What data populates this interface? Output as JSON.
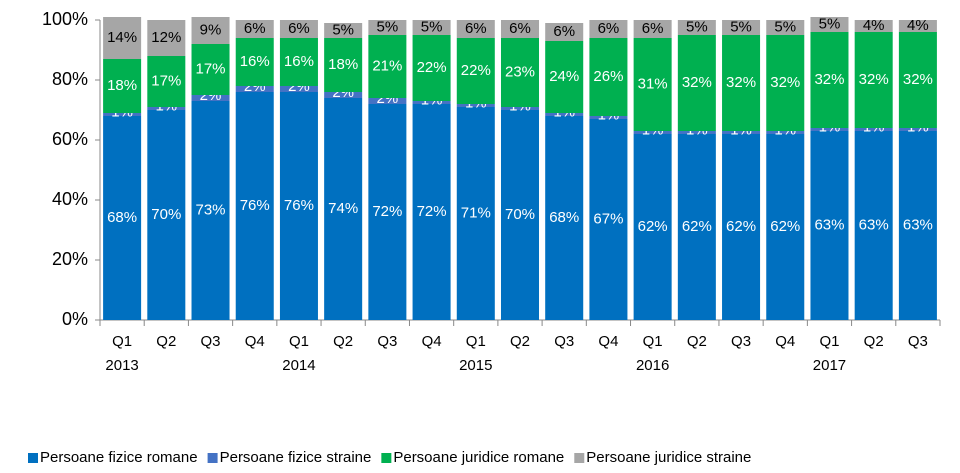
{
  "chart_data": {
    "type": "stacked_bar",
    "categories": [
      "Q1",
      "Q2",
      "Q3",
      "Q4",
      "Q1",
      "Q2",
      "Q3",
      "Q4",
      "Q1",
      "Q2",
      "Q3",
      "Q4",
      "Q1",
      "Q2",
      "Q3",
      "Q4",
      "Q1",
      "Q2",
      "Q3"
    ],
    "years": [
      "2013",
      null,
      null,
      null,
      "2014",
      null,
      null,
      null,
      "2015",
      null,
      null,
      null,
      "2016",
      null,
      null,
      null,
      "2017",
      null,
      null
    ],
    "ylim": [
      0,
      100
    ],
    "yticks": [
      {
        "value": 0,
        "label": "0%"
      },
      {
        "value": 20,
        "label": "20%"
      },
      {
        "value": 40,
        "label": "40%"
      },
      {
        "value": 60,
        "label": "60%"
      },
      {
        "value": 80,
        "label": "80%"
      },
      {
        "value": 100,
        "label": "100%"
      }
    ],
    "legend": "bottom",
    "series": [
      {
        "name": "Persoane fizice romane",
        "color": "#0070c0",
        "label_color": "#ffffff",
        "values": [
          68,
          70,
          73,
          76,
          76,
          74,
          72,
          72,
          71,
          70,
          68,
          67,
          62,
          62,
          62,
          62,
          63,
          63,
          63
        ],
        "value_labels": [
          "68%",
          "70%",
          "73%",
          "76%",
          "76%",
          "74%",
          "72%",
          "72%",
          "71%",
          "70%",
          "68%",
          "67%",
          "62%",
          "62%",
          "62%",
          "62%",
          "63%",
          "63%",
          "63%"
        ]
      },
      {
        "name": "Persoane fizice straine",
        "color": "#4472c4",
        "label_color": "#ffffff",
        "values": [
          1,
          1,
          2,
          2,
          2,
          2,
          2,
          1,
          1,
          1,
          1,
          1,
          1,
          1,
          1,
          1,
          1,
          1,
          1
        ],
        "value_labels": [
          "1%",
          "1%",
          "2%",
          "2%",
          "2%",
          "2%",
          "2%",
          "1%",
          "1%",
          "1%",
          "1%",
          "1%",
          "1%",
          "1%",
          "1%",
          "1%",
          "1%",
          "1%",
          "1%"
        ]
      },
      {
        "name": "Persoane juridice romane",
        "color": "#00b050",
        "label_color": "#ffffff",
        "values": [
          18,
          17,
          17,
          16,
          16,
          18,
          21,
          22,
          22,
          23,
          24,
          26,
          31,
          32,
          32,
          32,
          32,
          32,
          32
        ],
        "value_labels": [
          "18%",
          "17%",
          "17%",
          "16%",
          "16%",
          "18%",
          "21%",
          "22%",
          "22%",
          "23%",
          "24%",
          "26%",
          "31%",
          "32%",
          "32%",
          "32%",
          "32%",
          "32%",
          "32%"
        ]
      },
      {
        "name": "Persoane juridice straine",
        "color": "#a6a6a6",
        "label_color": "#000000",
        "values": [
          14,
          12,
          9,
          6,
          6,
          5,
          5,
          5,
          6,
          6,
          6,
          6,
          6,
          5,
          5,
          5,
          5,
          4,
          4
        ],
        "value_labels": [
          "14%",
          "12%",
          "9%",
          "6%",
          "6%",
          "5%",
          "5%",
          "5%",
          "6%",
          "6%",
          "6%",
          "6%",
          "6%",
          "5%",
          "5%",
          "5%",
          "5%",
          "4%",
          "4%"
        ]
      }
    ]
  }
}
